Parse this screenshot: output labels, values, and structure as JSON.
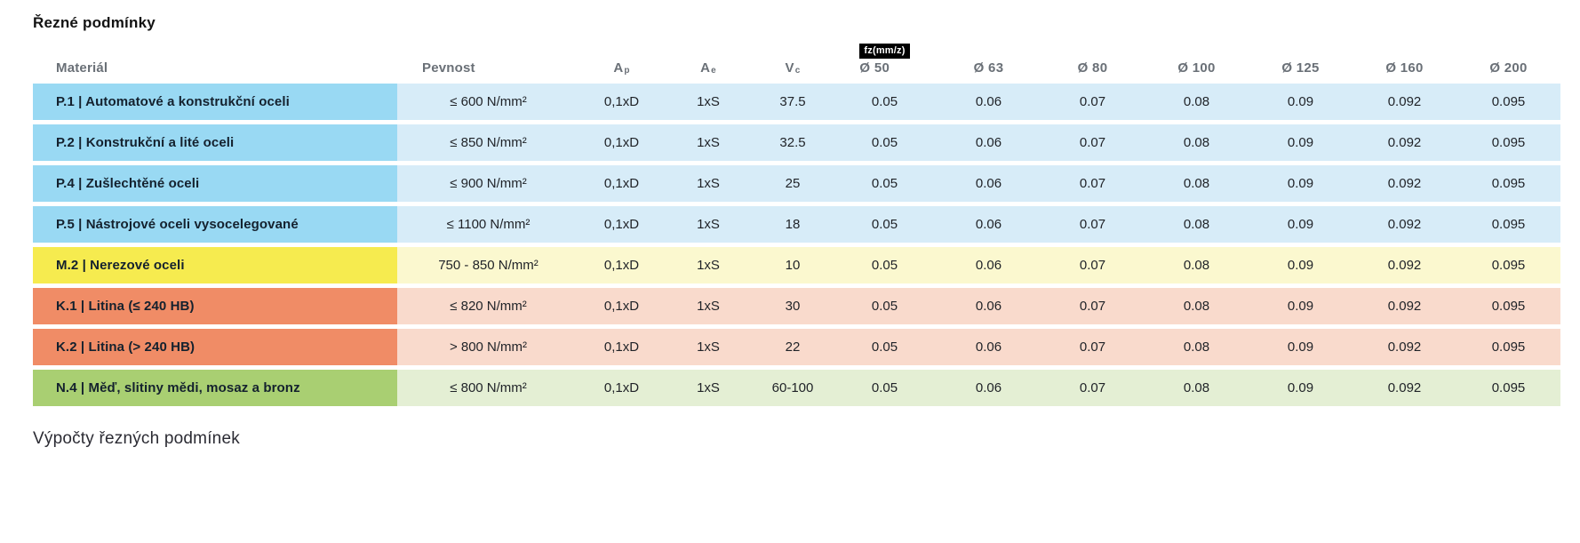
{
  "page": {
    "title": "Řezné podmínky",
    "footer_heading": "Výpočty řezných podmínek"
  },
  "table": {
    "fz_badge": "fz(mm/z)",
    "headers": {
      "material": "Materiál",
      "pevnost": "Pevnost",
      "ap": {
        "base": "A",
        "sub": "p"
      },
      "ae": {
        "base": "A",
        "sub": "e"
      },
      "vc": {
        "base": "V",
        "sub": "c"
      },
      "diameters": [
        "Ø 50",
        "Ø 63",
        "Ø 80",
        "Ø 100",
        "Ø 125",
        "Ø 160",
        "Ø 200"
      ]
    },
    "colors": {
      "blue": {
        "accent": "#99D9F3",
        "tint": "#D7ECF8"
      },
      "yellow": {
        "accent": "#F6EB4F",
        "tint": "#FBF8CF"
      },
      "salmon": {
        "accent": "#F08C66",
        "tint": "#F9DACC"
      },
      "green": {
        "accent": "#A9CF72",
        "tint": "#E4EFD4"
      }
    },
    "rows": [
      {
        "material": "P.1 | Automatové a konstrukční oceli",
        "pevnost": "≤ 600 N/mm²",
        "ap": "0,1xD",
        "ae": "1xS",
        "vc": "37.5",
        "fz": [
          "0.05",
          "0.06",
          "0.07",
          "0.08",
          "0.09",
          "0.092",
          "0.095"
        ],
        "color": "blue"
      },
      {
        "material": "P.2 | Konstrukční a lité oceli",
        "pevnost": "≤ 850 N/mm²",
        "ap": "0,1xD",
        "ae": "1xS",
        "vc": "32.5",
        "fz": [
          "0.05",
          "0.06",
          "0.07",
          "0.08",
          "0.09",
          "0.092",
          "0.095"
        ],
        "color": "blue"
      },
      {
        "material": "P.4 | Zušlechtěné oceli",
        "pevnost": "≤ 900 N/mm²",
        "ap": "0,1xD",
        "ae": "1xS",
        "vc": "25",
        "fz": [
          "0.05",
          "0.06",
          "0.07",
          "0.08",
          "0.09",
          "0.092",
          "0.095"
        ],
        "color": "blue"
      },
      {
        "material": "P.5 | Nástrojové oceli vysocelegované",
        "pevnost": "≤ 1100 N/mm²",
        "ap": "0,1xD",
        "ae": "1xS",
        "vc": "18",
        "fz": [
          "0.05",
          "0.06",
          "0.07",
          "0.08",
          "0.09",
          "0.092",
          "0.095"
        ],
        "color": "blue"
      },
      {
        "material": "M.2 | Nerezové oceli",
        "pevnost": "750 - 850 N/mm²",
        "ap": "0,1xD",
        "ae": "1xS",
        "vc": "10",
        "fz": [
          "0.05",
          "0.06",
          "0.07",
          "0.08",
          "0.09",
          "0.092",
          "0.095"
        ],
        "color": "yellow"
      },
      {
        "material": "K.1 | Litina (≤ 240 HB)",
        "pevnost": "≤ 820 N/mm²",
        "ap": "0,1xD",
        "ae": "1xS",
        "vc": "30",
        "fz": [
          "0.05",
          "0.06",
          "0.07",
          "0.08",
          "0.09",
          "0.092",
          "0.095"
        ],
        "color": "salmon"
      },
      {
        "material": "K.2 | Litina (> 240 HB)",
        "pevnost": "> 800 N/mm²",
        "ap": "0,1xD",
        "ae": "1xS",
        "vc": "22",
        "fz": [
          "0.05",
          "0.06",
          "0.07",
          "0.08",
          "0.09",
          "0.092",
          "0.095"
        ],
        "color": "salmon"
      },
      {
        "material": "N.4 | Měď, slitiny mědi, mosaz a bronz",
        "pevnost": "≤ 800 N/mm²",
        "ap": "0,1xD",
        "ae": "1xS",
        "vc": "60-100",
        "fz": [
          "0.05",
          "0.06",
          "0.07",
          "0.08",
          "0.09",
          "0.092",
          "0.095"
        ],
        "color": "green"
      }
    ]
  }
}
